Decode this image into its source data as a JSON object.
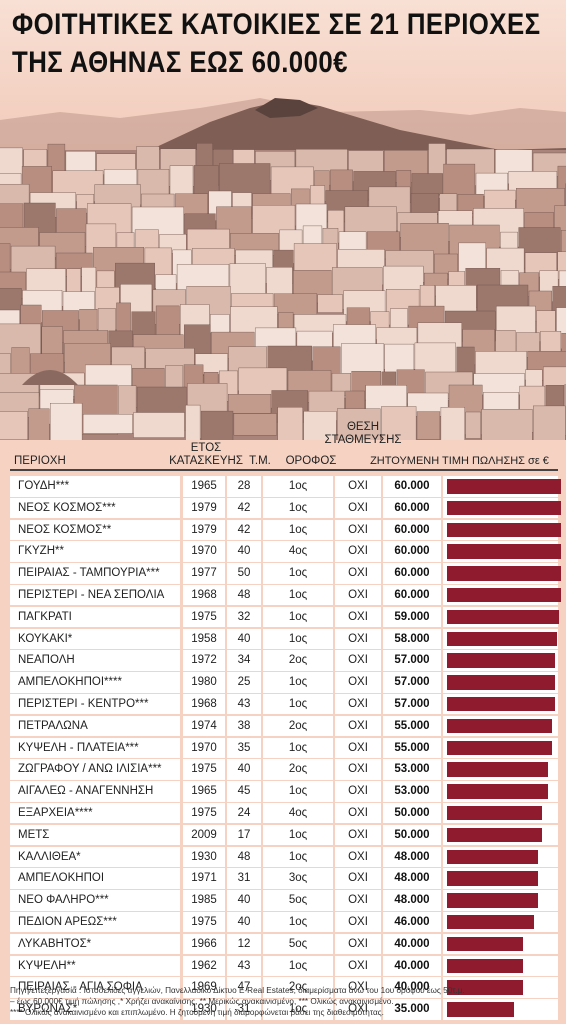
{
  "title": {
    "line1": "ΦΟΙΤΗΤΙΚΕΣ ΚΑΤΟΙΚΙΕΣ ΣΕ 21 ΠΕΡΙΟΧΕΣ",
    "line2": "ΤΗΣ ΑΘΗΝΑΣ ΕΩΣ 60.000€"
  },
  "headers": {
    "area": "ΠΕΡΙΟΧΗ",
    "year_line1": "ΕΤΟΣ",
    "year_line2": "ΚΑΤΑΣΚΕΥΗΣ",
    "sqm": "Τ.Μ.",
    "floor": "ΟΡΟΦΟΣ",
    "parking_line1": "ΘΕΣΗ",
    "parking_line2": "ΣΤΑΘΜΕΥΣΗΣ",
    "price": "ΖΗΤΟΥΜΕΝΗ ΤΙΜΗ ΠΩΛΗΣΗΣ σε €"
  },
  "colors": {
    "bar": "#8e1b2e",
    "background": "#f6d2c3"
  },
  "chart_data": {
    "type": "bar",
    "orientation": "horizontal",
    "xlim": [
      0,
      60000
    ],
    "rows": [
      {
        "area": "ΓΟΥΔΗ***",
        "year": "1965",
        "sqm": "28",
        "floor": "1ος",
        "parking": "ΟΧΙ",
        "price_label": "60.000",
        "price": 60000
      },
      {
        "area": "ΝΕΟΣ ΚΟΣΜΟΣ***",
        "year": "1979",
        "sqm": "42",
        "floor": "1ος",
        "parking": "ΟΧΙ",
        "price_label": "60.000",
        "price": 60000
      },
      {
        "area": "ΝΕΟΣ ΚΟΣΜΟΣ**",
        "year": "1979",
        "sqm": "42",
        "floor": "1ος",
        "parking": "ΟΧΙ",
        "price_label": "60.000",
        "price": 60000
      },
      {
        "area": "ΓΚΥΖΗ**",
        "year": "1970",
        "sqm": "40",
        "floor": "4ος",
        "parking": "ΟΧΙ",
        "price_label": "60.000",
        "price": 60000
      },
      {
        "area": "ΠΕΙΡΑΙΑΣ - ΤΑΜΠΟΥΡΙΑ***",
        "year": "1977",
        "sqm": "50",
        "floor": "1ος",
        "parking": "ΟΧΙ",
        "price_label": "60.000",
        "price": 60000
      },
      {
        "area": "ΠΕΡΙΣΤΕΡΙ - ΝΕΑ ΣΕΠΟΛΙΑ",
        "year": "1968",
        "sqm": "48",
        "floor": "1ος",
        "parking": "ΟΧΙ",
        "price_label": "60.000",
        "price": 60000
      },
      {
        "area": "ΠΑΓΚΡΑΤΙ",
        "year": "1975",
        "sqm": "32",
        "floor": "1ος",
        "parking": "ΟΧΙ",
        "price_label": "59.000",
        "price": 59000
      },
      {
        "area": "ΚΟΥΚΑΚΙ*",
        "year": "1958",
        "sqm": "40",
        "floor": "1ος",
        "parking": "ΟΧΙ",
        "price_label": "58.000",
        "price": 58000
      },
      {
        "area": "ΝΕΑΠΟΛΗ",
        "year": "1972",
        "sqm": "34",
        "floor": "2ος",
        "parking": "ΟΧΙ",
        "price_label": "57.000",
        "price": 57000
      },
      {
        "area": "ΑΜΠΕΛΟΚΗΠΟΙ****",
        "year": "1980",
        "sqm": "25",
        "floor": "1ος",
        "parking": "ΟΧΙ",
        "price_label": "57.000",
        "price": 57000
      },
      {
        "area": "ΠΕΡΙΣΤΕΡΙ - ΚΕΝΤΡΟ***",
        "year": "1968",
        "sqm": "43",
        "floor": "1ος",
        "parking": "ΟΧΙ",
        "price_label": "57.000",
        "price": 57000
      },
      {
        "area": "ΠΕΤΡΑΛΩΝΑ",
        "year": "1974",
        "sqm": "38",
        "floor": "2ος",
        "parking": "ΟΧΙ",
        "price_label": "55.000",
        "price": 55000
      },
      {
        "area": "ΚΥΨΕΛΗ - ΠΛΑΤΕΙΑ***",
        "year": "1970",
        "sqm": "35",
        "floor": "1ος",
        "parking": "ΟΧΙ",
        "price_label": "55.000",
        "price": 55000
      },
      {
        "area": "ΖΩΓΡΑΦΟΥ / ΑΝΩ ΙΛΙΣΙΑ***",
        "year": "1975",
        "sqm": "40",
        "floor": "2ος",
        "parking": "ΟΧΙ",
        "price_label": "53.000",
        "price": 53000
      },
      {
        "area": "ΑΙΓΑΛΕΩ - ΑΝΑΓΕΝΝΗΣΗ",
        "year": "1965",
        "sqm": "45",
        "floor": "1ος",
        "parking": "ΟΧΙ",
        "price_label": "53.000",
        "price": 53000
      },
      {
        "area": "ΕΞΑΡΧΕΙΑ****",
        "year": "1975",
        "sqm": "24",
        "floor": "4ος",
        "parking": "ΟΧΙ",
        "price_label": "50.000",
        "price": 50000
      },
      {
        "area": "ΜΕΤΣ",
        "year": "2009",
        "sqm": "17",
        "floor": "1ος",
        "parking": "ΟΧΙ",
        "price_label": "50.000",
        "price": 50000
      },
      {
        "area": "ΚΑΛΛΙΘΕΑ*",
        "year": "1930",
        "sqm": "48",
        "floor": "1ος",
        "parking": "ΟΧΙ",
        "price_label": "48.000",
        "price": 48000
      },
      {
        "area": "ΑΜΠΕΛΟΚΗΠΟΙ",
        "year": "1971",
        "sqm": "31",
        "floor": "3ος",
        "parking": "ΟΧΙ",
        "price_label": "48.000",
        "price": 48000
      },
      {
        "area": "ΝΕΟ ΦΑΛΗΡΟ***",
        "year": "1985",
        "sqm": "40",
        "floor": "5ος",
        "parking": "ΟΧΙ",
        "price_label": "48.000",
        "price": 48000
      },
      {
        "area": "ΠΕΔΙΟΝ ΑΡΕΩΣ***",
        "year": "1975",
        "sqm": "40",
        "floor": "1ος",
        "parking": "ΟΧΙ",
        "price_label": "46.000",
        "price": 46000
      },
      {
        "area": "ΛΥΚΑΒΗΤΟΣ*",
        "year": "1966",
        "sqm": "12",
        "floor": "5ος",
        "parking": "ΟΧΙ",
        "price_label": "40.000",
        "price": 40000
      },
      {
        "area": "ΚΥΨΕΛΗ**",
        "year": "1962",
        "sqm": "43",
        "floor": "1ος",
        "parking": "ΟΧΙ",
        "price_label": "40.000",
        "price": 40000
      },
      {
        "area": "ΠΕΙΡΑΙΑΣ - ΑΓΙΑ ΣΟΦΙΑ",
        "year": "1969",
        "sqm": "47",
        "floor": "2ος",
        "parking": "ΟΧΙ",
        "price_label": "40.000",
        "price": 40000
      },
      {
        "area": "ΒΥΡΩΝΑΣ*",
        "year": "1930",
        "sqm": "31",
        "floor": "1ος",
        "parking": "ΟΧΙ",
        "price_label": "35.000",
        "price": 35000
      }
    ]
  },
  "footnote": {
    "line1": "Πηγή/επεξεργασία : Ιστοσελίδες αγγελιών, Πανελλαδικό Δίκτυο E-Real Estates, διαμερίσματα άνω του 1ου ορόφου έως 50τ.μ.",
    "line2": "– έως 60.000€ τιμή πώλησης ,* Χρήζει ανακαίνισης, ** Μερικώς ανακαινισμένο, *** Ολικώς ανακαινισμένο.",
    "line3": "**** Ολικώς ανακαινισμένο και επιπλωμένο. Η ζητούμενη τιμή διαμορφώνεται βάσει της διαθεσιμότητας."
  }
}
